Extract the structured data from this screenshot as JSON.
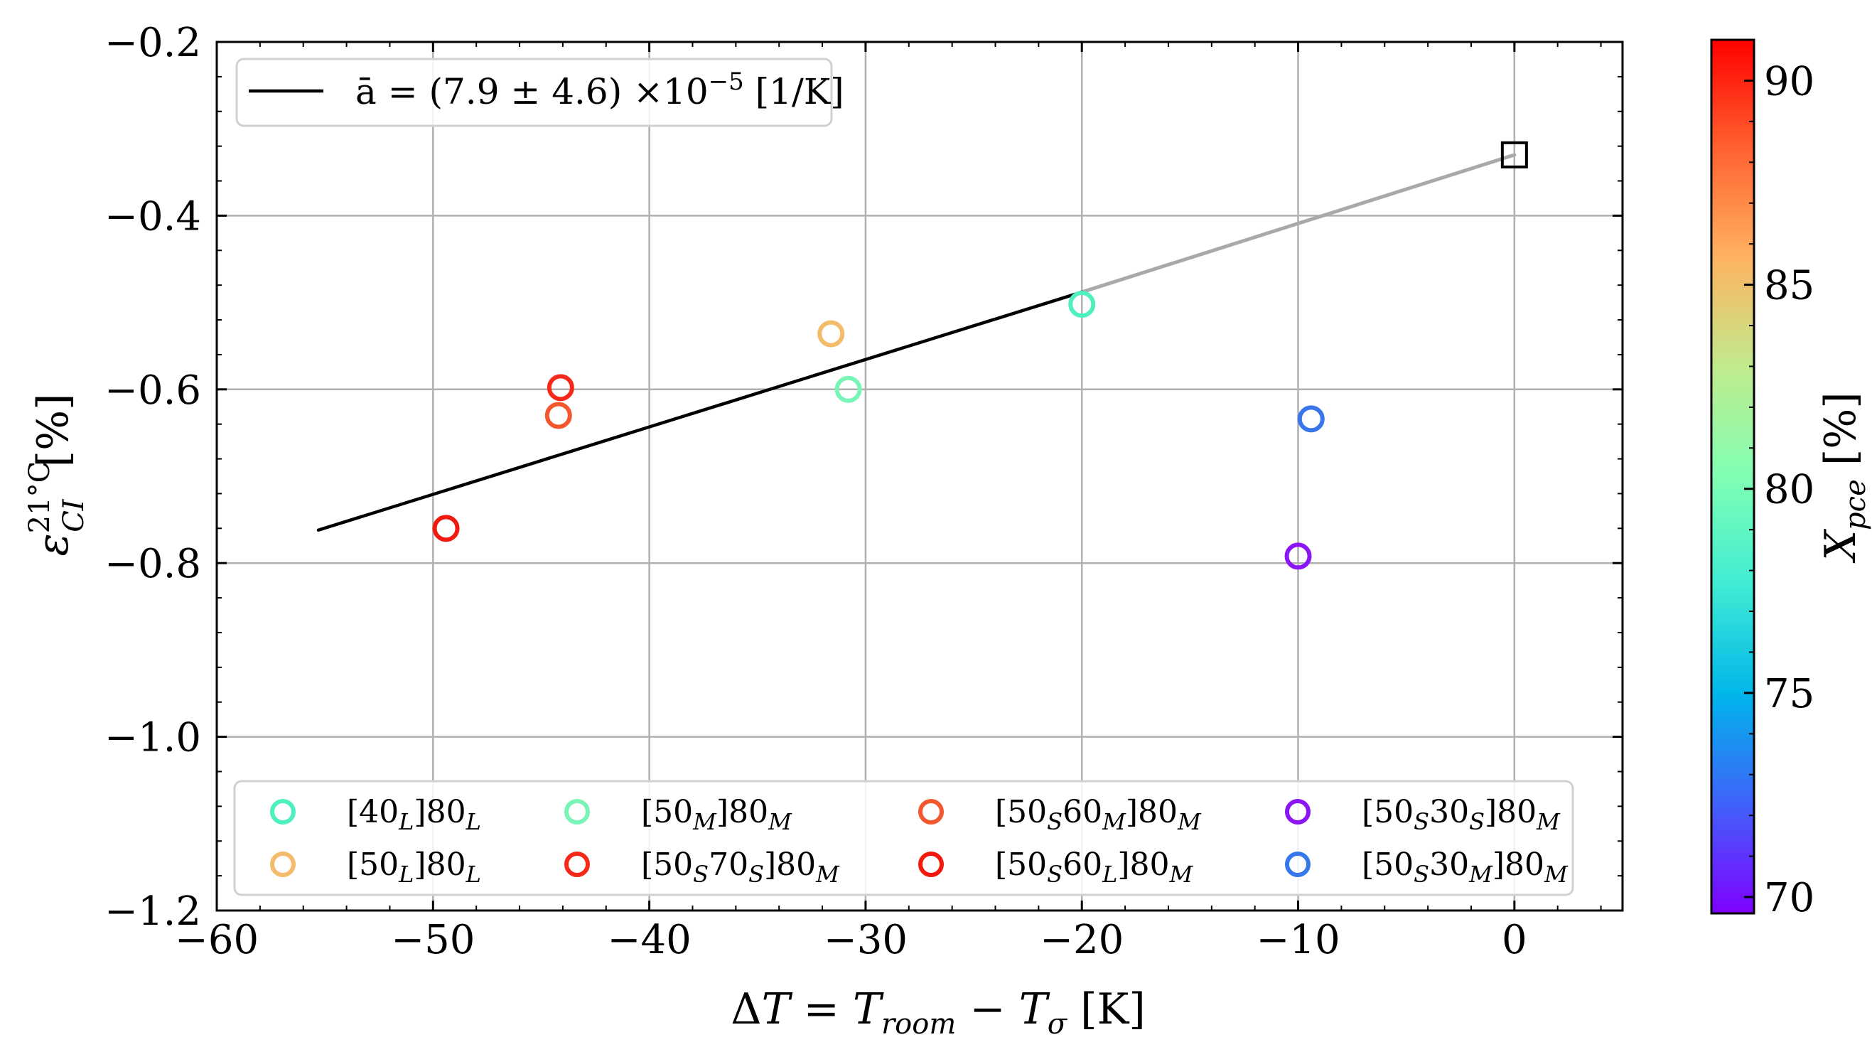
{
  "chart_data": {
    "type": "scatter",
    "xlabel": "ΔT = T_room − T_σ [K]",
    "ylabel": "ε_CI^21°C [%]",
    "xlim": [
      -60,
      5
    ],
    "ylim": [
      -1.2,
      -0.2
    ],
    "xticks": [
      -60,
      -50,
      -40,
      -30,
      -20,
      -10,
      0
    ],
    "xtick_labels": [
      "−60",
      "−50",
      "−40",
      "−30",
      "−20",
      "−10",
      "0"
    ],
    "yticks": [
      -1.2,
      -1.0,
      -0.8,
      -0.6,
      -0.4,
      -0.2
    ],
    "ytick_labels": [
      "−1.2",
      "−1.0",
      "−0.8",
      "−0.6",
      "−0.4",
      "−0.2"
    ],
    "grid": true,
    "fit": {
      "label": "ā = (7.9 ± 4.6) ×10⁻⁵ [1/K]",
      "color": "#000000",
      "extension_color": "#a9a9a9",
      "points": [
        [
          -55.3,
          -0.762
        ],
        [
          -20,
          -0.488
        ]
      ],
      "extension": [
        [
          -20,
          -0.488
        ],
        [
          0,
          -0.33
        ]
      ]
    },
    "reference": {
      "x": 0,
      "y": -0.33,
      "marker": "square"
    },
    "series": [
      {
        "name": "[40_L]80_L",
        "x": -20.0,
        "y": -0.502,
        "color": "#4ef0c0"
      },
      {
        "name": "[50_L]80_L",
        "x": -31.6,
        "y": -0.536,
        "color": "#f3bb6a"
      },
      {
        "name": "[50_M]80_M",
        "x": -30.8,
        "y": -0.6,
        "color": "#7af5b8"
      },
      {
        "name": "[50_S70_S]80_M",
        "x": -44.1,
        "y": -0.598,
        "color": "#f6281a"
      },
      {
        "name": "[50_S60_M]80_M",
        "x": -44.2,
        "y": -0.63,
        "color": "#f3582f"
      },
      {
        "name": "[50_S60_L]80_M",
        "x": -49.4,
        "y": -0.76,
        "color": "#f21a0e"
      },
      {
        "name": "[50_S30_S]80_M",
        "x": -10.0,
        "y": -0.792,
        "color": "#8c15f5"
      },
      {
        "name": "[50_S30_M]80_M",
        "x": -9.4,
        "y": -0.634,
        "color": "#3877ea"
      }
    ],
    "colorbar": {
      "label": "X_pce [%]",
      "min": 69.6,
      "max": 91.0,
      "ticks": [
        70,
        75,
        80,
        85,
        90
      ],
      "tick_labels": [
        "70",
        "75",
        "80",
        "85",
        "90"
      ],
      "colormap": "rainbow"
    }
  }
}
